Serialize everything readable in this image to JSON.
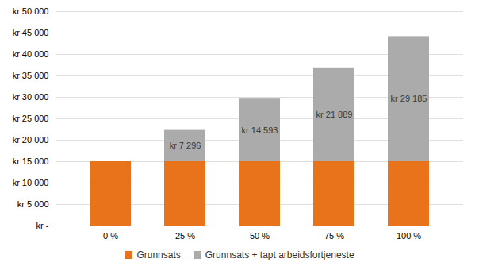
{
  "chart_data": {
    "type": "bar",
    "stacked": true,
    "categories": [
      "0 %",
      "25 %",
      "50 %",
      "75 %",
      "100 %"
    ],
    "series": [
      {
        "name": "Grunnsats",
        "color": "#E8731A",
        "values": [
          15000,
          15000,
          15000,
          15000,
          15000
        ]
      },
      {
        "name": "Grunnsats + tapt arbeidsfortjeneste",
        "color": "#ABABAB",
        "values": [
          0,
          7296,
          14593,
          21889,
          29185
        ],
        "data_labels": true,
        "value_labels": [
          null,
          "kr 7 296",
          "kr 14 593",
          "kr 21 889",
          "kr 29 185"
        ]
      }
    ],
    "ylim": [
      0,
      50000
    ],
    "yticks": [
      {
        "value": 0,
        "label": "kr -"
      },
      {
        "value": 5000,
        "label": "kr 5 000"
      },
      {
        "value": 10000,
        "label": "kr 10 000"
      },
      {
        "value": 15000,
        "label": "kr 15 000"
      },
      {
        "value": 20000,
        "label": "kr 20 000"
      },
      {
        "value": 25000,
        "label": "kr 25 000"
      },
      {
        "value": 30000,
        "label": "kr 30 000"
      },
      {
        "value": 35000,
        "label": "kr 35 000"
      },
      {
        "value": 40000,
        "label": "kr 40 000"
      },
      {
        "value": 45000,
        "label": "kr 45 000"
      },
      {
        "value": 50000,
        "label": "kr 50 000"
      }
    ],
    "grid": true,
    "legend": "bottom"
  }
}
